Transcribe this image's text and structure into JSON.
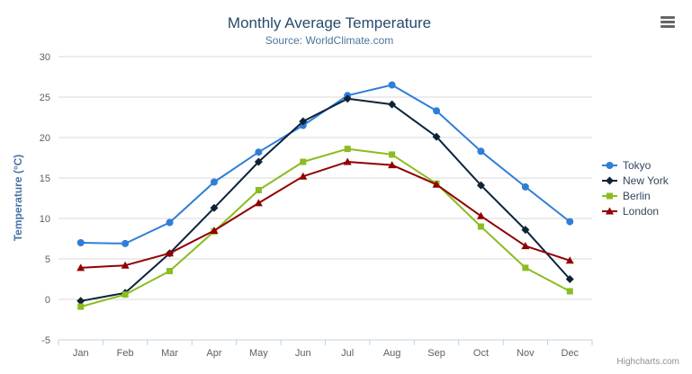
{
  "chart_data": {
    "type": "line",
    "title": "Monthly Average Temperature",
    "subtitle": "Source: WorldClimate.com",
    "categories": [
      "Jan",
      "Feb",
      "Mar",
      "Apr",
      "May",
      "Jun",
      "Jul",
      "Aug",
      "Sep",
      "Oct",
      "Nov",
      "Dec"
    ],
    "xlabel": "",
    "ylabel": "Temperature (°C)",
    "ylim": [
      -5,
      30
    ],
    "ytick_step": 5,
    "grid": true,
    "legend_position": "right",
    "series": [
      {
        "name": "Tokyo",
        "color": "#2f7ed8",
        "marker": "circle",
        "values": [
          7.0,
          6.9,
          9.5,
          14.5,
          18.2,
          21.5,
          25.2,
          26.5,
          23.3,
          18.3,
          13.9,
          9.6
        ]
      },
      {
        "name": "New York",
        "color": "#0d233a",
        "marker": "diamond",
        "values": [
          -0.2,
          0.8,
          5.7,
          11.3,
          17.0,
          22.0,
          24.8,
          24.1,
          20.1,
          14.1,
          8.6,
          2.5
        ]
      },
      {
        "name": "Berlin",
        "color": "#8bbc21",
        "marker": "square",
        "values": [
          -0.9,
          0.6,
          3.5,
          8.4,
          13.5,
          17.0,
          18.6,
          17.9,
          14.3,
          9.0,
          3.9,
          1.0
        ]
      },
      {
        "name": "London",
        "color": "#910000",
        "marker": "triangle",
        "values": [
          3.9,
          4.2,
          5.7,
          8.5,
          11.9,
          15.2,
          17.0,
          16.6,
          14.2,
          10.3,
          6.6,
          4.8
        ]
      }
    ]
  },
  "credits": {
    "label": "Highcharts.com"
  },
  "export_menu": {
    "icon": "hamburger-icon"
  },
  "colors": {
    "title": "#274b6d",
    "subtitle": "#4d759e",
    "axis_label": "#606060",
    "axis_title": "#4572a7",
    "grid_line": "#d8d8d8",
    "axis_line": "#c0d0e0",
    "legend_text": "#33475b",
    "credit": "#909090"
  }
}
